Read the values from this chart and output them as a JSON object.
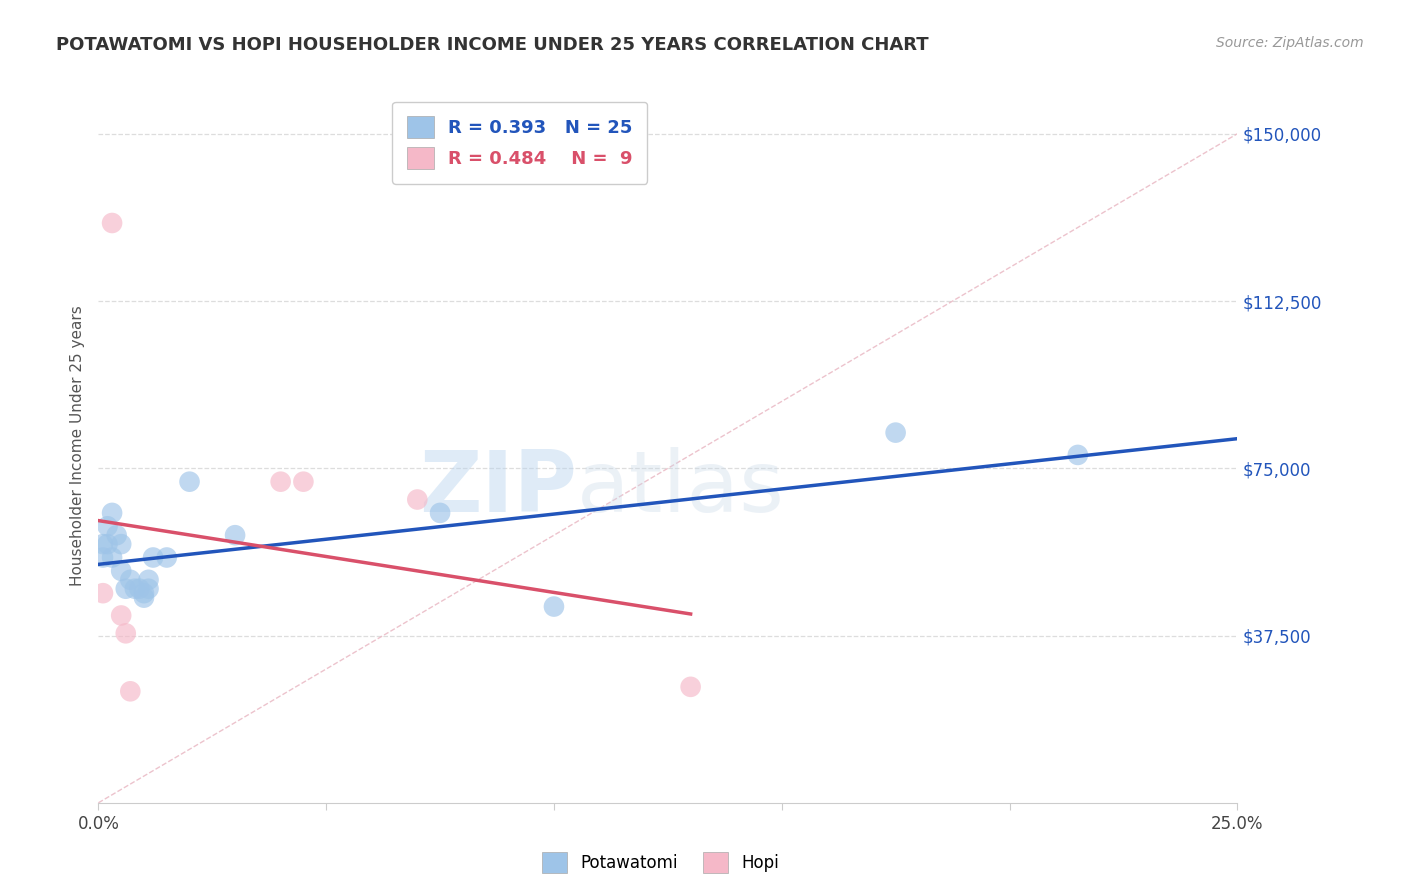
{
  "title": "POTAWATOMI VS HOPI HOUSEHOLDER INCOME UNDER 25 YEARS CORRELATION CHART",
  "source": "Source: ZipAtlas.com",
  "ylabel": "Householder Income Under 25 years",
  "xlim": [
    0.0,
    0.25
  ],
  "ylim": [
    0,
    160000
  ],
  "xticks": [
    0.0,
    0.05,
    0.1,
    0.15,
    0.2,
    0.25
  ],
  "xticklabels": [
    "0.0%",
    "",
    "",
    "",
    "",
    "25.0%"
  ],
  "ytick_positions": [
    37500,
    75000,
    112500,
    150000
  ],
  "ytick_labels": [
    "$37,500",
    "$75,000",
    "$112,500",
    "$150,000"
  ],
  "potawatomi_x": [
    0.001,
    0.001,
    0.002,
    0.002,
    0.003,
    0.003,
    0.004,
    0.005,
    0.005,
    0.006,
    0.007,
    0.008,
    0.009,
    0.01,
    0.01,
    0.011,
    0.011,
    0.012,
    0.015,
    0.02,
    0.03,
    0.075,
    0.1,
    0.175,
    0.215
  ],
  "potawatomi_y": [
    58000,
    55000,
    62000,
    58000,
    65000,
    55000,
    60000,
    58000,
    52000,
    48000,
    50000,
    48000,
    48000,
    47000,
    46000,
    50000,
    48000,
    55000,
    55000,
    72000,
    60000,
    65000,
    44000,
    83000,
    78000
  ],
  "hopi_x": [
    0.001,
    0.003,
    0.005,
    0.006,
    0.007,
    0.04,
    0.045,
    0.07,
    0.13
  ],
  "hopi_y": [
    47000,
    130000,
    42000,
    38000,
    25000,
    72000,
    72000,
    68000,
    26000
  ],
  "blue_color": "#9ec4e8",
  "pink_color": "#f5b8c8",
  "blue_line_color": "#2255bb",
  "pink_line_color": "#d9506a",
  "diagonal_color": "#e8b4c0",
  "R_potawatomi": 0.393,
  "N_potawatomi": 25,
  "R_hopi": 0.484,
  "N_hopi": 9,
  "watermark_zip": "ZIP",
  "watermark_atlas": "atlas",
  "background_color": "#ffffff",
  "grid_color": "#dddddd"
}
